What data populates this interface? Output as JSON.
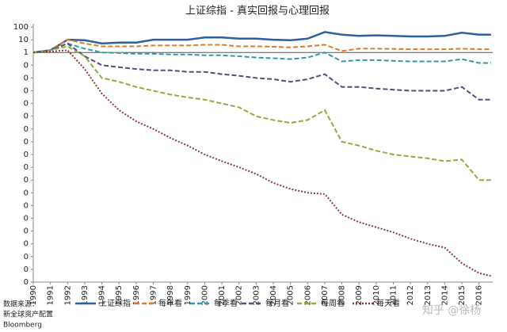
{
  "chart_data": {
    "type": "line",
    "title": "上证综指 - 真实回报与心理回报",
    "yscale": "log",
    "x": [
      1990,
      1991,
      1992,
      1993,
      1994,
      1995,
      1996,
      1997,
      1998,
      1999,
      2000,
      2001,
      2002,
      2003,
      2004,
      2005,
      2006,
      2007,
      2008,
      2009,
      2010,
      2011,
      2012,
      2013,
      2014,
      2015,
      2016,
      2016.7
    ],
    "xlim": [
      1990,
      2016.8
    ],
    "xticks": [
      1990,
      1991,
      1992,
      1993,
      1994,
      1995,
      1996,
      1997,
      1998,
      1999,
      2000,
      2001,
      2002,
      2003,
      2004,
      2005,
      2006,
      2007,
      2008,
      2009,
      2010,
      2011,
      2012,
      2013,
      2014,
      2015,
      2016
    ],
    "ylim": [
      1e-18,
      100
    ],
    "yticks": [
      100,
      10,
      1,
      {
        "value": 0.1,
        "label": "0"
      },
      {
        "value": 0.01,
        "label": "0"
      },
      {
        "value": 0.001,
        "label": "0"
      },
      {
        "value": 0.0001,
        "label": "0"
      },
      {
        "value": 1e-05,
        "label": "0"
      },
      {
        "value": 1e-06,
        "label": "0"
      },
      {
        "value": 1e-07,
        "label": "0"
      },
      {
        "value": 1e-08,
        "label": "0"
      },
      {
        "value": 1e-09,
        "label": "0"
      },
      {
        "value": 1e-10,
        "label": "0"
      },
      {
        "value": 1e-11,
        "label": "0"
      },
      {
        "value": 1e-12,
        "label": "0"
      },
      {
        "value": 1e-13,
        "label": "0"
      },
      {
        "value": 1e-14,
        "label": "0"
      },
      {
        "value": 1e-15,
        "label": "0"
      },
      {
        "value": 1e-16,
        "label": "0"
      },
      {
        "value": 1e-17,
        "label": "0"
      },
      {
        "value": 1e-18,
        "label": "0"
      }
    ],
    "series": [
      {
        "name": "上证综指",
        "color": "#2e5f9e",
        "dash": "solid",
        "values": [
          1,
          1.5,
          10,
          9,
          5,
          6,
          6,
          10,
          10,
          10,
          15,
          15,
          12,
          12,
          10,
          9,
          12,
          40,
          25,
          20,
          22,
          20,
          18,
          18,
          20,
          35,
          25,
          25
        ]
      },
      {
        "name": "每年看",
        "color": "#e07b2e",
        "dash": "dash",
        "values": [
          1,
          1.5,
          10,
          5,
          3,
          3,
          3,
          3.5,
          3.5,
          3.5,
          4,
          4,
          3,
          3,
          2.8,
          2.5,
          3,
          4,
          1.3,
          2,
          2,
          1.9,
          1.8,
          1.8,
          1.8,
          2,
          1.8,
          1.8
        ]
      },
      {
        "name": "每季看",
        "color": "#2b9cb0",
        "dash": "dash",
        "values": [
          1,
          1.5,
          5,
          2,
          1,
          0.9,
          0.8,
          0.8,
          0.7,
          0.7,
          0.6,
          0.6,
          0.5,
          0.4,
          0.35,
          0.3,
          0.4,
          1,
          0.2,
          0.25,
          0.25,
          0.22,
          0.2,
          0.2,
          0.2,
          0.3,
          0.15,
          0.15
        ]
      },
      {
        "name": "每月看",
        "color": "#5a4a7e",
        "dash": "dash",
        "values": [
          1,
          1.5,
          5,
          0.5,
          0.1,
          0.07,
          0.05,
          0.04,
          0.04,
          0.03,
          0.03,
          0.02,
          0.015,
          0.01,
          0.008,
          0.005,
          0.008,
          0.02,
          0.002,
          0.002,
          0.0015,
          0.0012,
          0.001,
          0.001,
          0.001,
          0.002,
          0.0002,
          0.0002
        ]
      },
      {
        "name": "每周看",
        "color": "#8fad3f",
        "dash": "dash",
        "values": [
          1,
          1.5,
          3,
          0.5,
          0.01,
          0.005,
          0.002,
          0.001,
          0.0005,
          0.0003,
          0.0002,
          0.0001,
          5e-05,
          1e-05,
          5e-06,
          3e-06,
          5e-06,
          3e-05,
          1e-07,
          5e-08,
          2e-08,
          1e-08,
          7e-09,
          5e-09,
          3e-09,
          4e-09,
          1e-10,
          1e-10
        ]
      },
      {
        "name": "每天看",
        "color": "#8e3a3a",
        "dash": "dot",
        "values": [
          1,
          1.2,
          1.5,
          0.05,
          0.0006,
          3e-05,
          4e-06,
          1e-06,
          2e-07,
          5e-08,
          1e-08,
          3e-09,
          1e-09,
          3e-10,
          6e-11,
          2e-11,
          1e-11,
          8e-12,
          2e-13,
          5e-14,
          2e-14,
          8e-15,
          2.5e-15,
          1e-15,
          5e-16,
          3e-17,
          5e-18,
          3e-18
        ]
      }
    ],
    "source": [
      "数据来源：",
      "新全球资产配置",
      "Bloomberg"
    ],
    "watermark": "知乎 @徐杨"
  }
}
